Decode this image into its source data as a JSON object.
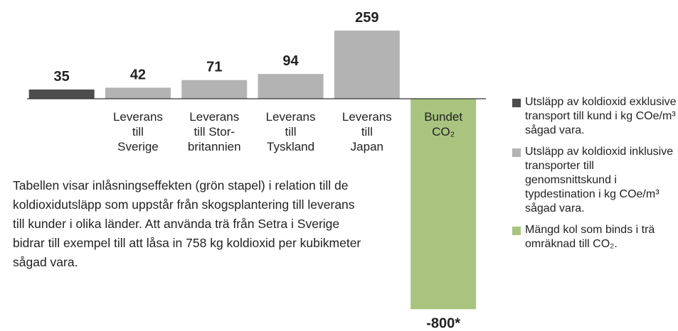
{
  "chart_data": {
    "type": "bar",
    "categories": [
      null,
      "Leverans\ntill\nSverige",
      "Leverans\ntill Stor-\nbritannien",
      "Leverans\ntill\nTyskland",
      "Leverans\ntill\nJapan",
      "Bundet\nCO₂"
    ],
    "values": [
      35,
      42,
      71,
      94,
      259,
      -800
    ],
    "value_labels": [
      "35",
      "42",
      "71",
      "94",
      "259",
      "-800*"
    ],
    "colors": [
      "#4d4d4d",
      "#b3b3b3",
      "#b3b3b3",
      "#b3b3b3",
      "#b3b3b3",
      "#a8c47f"
    ],
    "ylim": [
      -810,
      270
    ],
    "legend": [
      {
        "label": "Utsläpp av koldioxid exklusive transport till kund i kg COe/m³ sågad vara.",
        "color": "#4d4d4d"
      },
      {
        "label": "Utsläpp av koldioxid inklusive transporter till genomsnittskund i typdestination i kg COe/m³ sågad vara.",
        "color": "#b3b3b3"
      },
      {
        "label": "Mängd kol som binds i trä omräknad till CO₂.",
        "color": "#a8c47f"
      }
    ],
    "annotation": "Tabellen visar inlåsningseffekten (grön stapel) i relation till de koldioxidutsläpp som uppstår från skogsplantering till leverans till kunder i olika länder. Att använda trä från Setra i Sverige bidrar till exempel till att låsa in 758 kg koldioxid per kubikmeter sågad vara."
  }
}
